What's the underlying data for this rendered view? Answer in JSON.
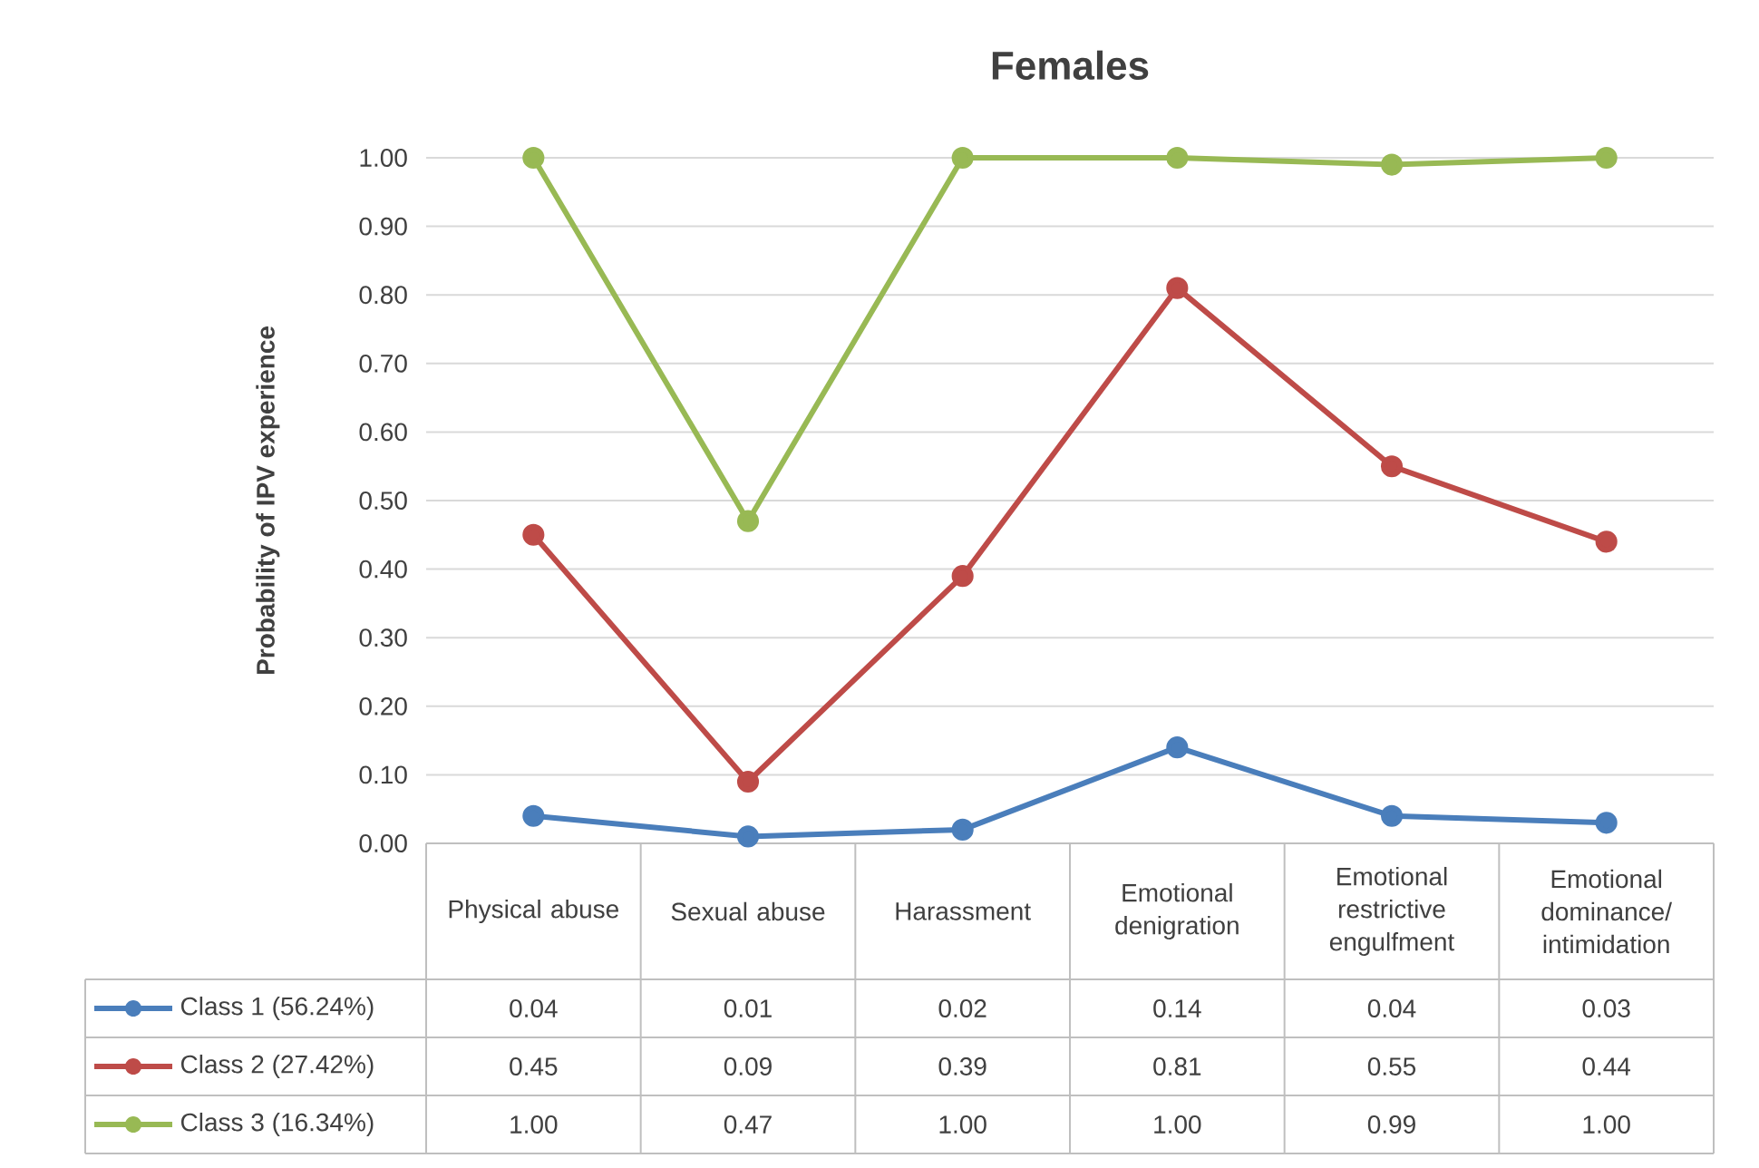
{
  "chart_data": {
    "type": "line",
    "title": "Females",
    "ylabel": "Probability of IPV experience",
    "categories": [
      "Physical abuse",
      "Sexual abuse",
      "Harassment",
      "Emotional denigration",
      "Emotional restrictive engulfment",
      "Emotional dominance/ intimidation"
    ],
    "series": [
      {
        "name": "Class 1 (56.24%)",
        "color": "#4a7ebb",
        "values": [
          0.04,
          0.01,
          0.02,
          0.14,
          0.04,
          0.03
        ],
        "value_labels": [
          "0.04",
          "0.01",
          "0.02",
          "0.14",
          "0.04",
          "0.03"
        ]
      },
      {
        "name": "Class 2 (27.42%)",
        "color": "#be4b48",
        "values": [
          0.45,
          0.09,
          0.39,
          0.81,
          0.55,
          0.44
        ],
        "value_labels": [
          "0.45",
          "0.09",
          "0.39",
          "0.81",
          "0.55",
          "0.44"
        ]
      },
      {
        "name": "Class 3 (16.34%)",
        "color": "#98b954",
        "values": [
          1.0,
          0.47,
          1.0,
          1.0,
          0.99,
          1.0
        ],
        "value_labels": [
          "1.00",
          "0.47",
          "1.00",
          "1.00",
          "0.99",
          "1.00"
        ]
      }
    ],
    "ylim": [
      0,
      1
    ],
    "yticks": [
      {
        "value": 0,
        "label": "0.00"
      },
      {
        "value": 0.1,
        "label": "0.10"
      },
      {
        "value": 0.2,
        "label": "0.20"
      },
      {
        "value": 0.3,
        "label": "0.30"
      },
      {
        "value": 0.4,
        "label": "0.40"
      },
      {
        "value": 0.5,
        "label": "0.50"
      },
      {
        "value": 0.6,
        "label": "0.60"
      },
      {
        "value": 0.7,
        "label": "0.70"
      },
      {
        "value": 0.8,
        "label": "0.80"
      },
      {
        "value": 0.9,
        "label": "0.90"
      },
      {
        "value": 1.0,
        "label": "1.00"
      }
    ],
    "grid": "y",
    "legend": "bottom",
    "marker": "circle",
    "line_style": "solid"
  }
}
